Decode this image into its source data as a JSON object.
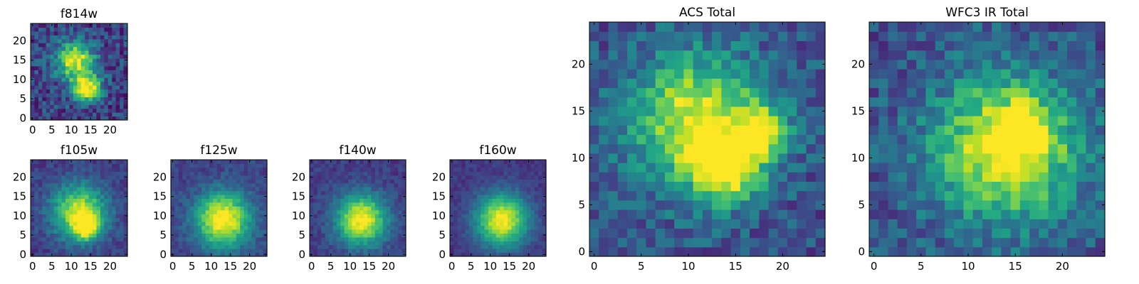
{
  "figure": {
    "panels": [
      {
        "id": "f814w",
        "title": "f814w"
      },
      {
        "id": "f105w",
        "title": "f105w"
      },
      {
        "id": "f125w",
        "title": "f125w"
      },
      {
        "id": "f140w",
        "title": "f140w"
      },
      {
        "id": "f160w",
        "title": "f160w"
      },
      {
        "id": "acs-total",
        "title": "ACS Total"
      },
      {
        "id": "wfc3-ir-total",
        "title": "WFC3 IR Total"
      }
    ]
  },
  "chart_data": [
    {
      "type": "heatmap",
      "title": "f814w",
      "colormap": "viridis",
      "xlim": [
        0,
        25
      ],
      "ylim": [
        0,
        25
      ],
      "grid": false,
      "xticks": [
        0,
        5,
        10,
        15,
        20
      ],
      "yticks": [
        0,
        5,
        10,
        15,
        20
      ],
      "pixels": 25,
      "peak_components": [
        {
          "x": 11,
          "y": 15,
          "amp": 0.75,
          "sigma": 3.5
        },
        {
          "x": 14,
          "y": 8,
          "amp": 0.85,
          "sigma": 2.5
        }
      ],
      "background": 0.2,
      "noise": 0.35
    },
    {
      "type": "heatmap",
      "title": "f105w",
      "colormap": "viridis",
      "xlim": [
        0,
        25
      ],
      "ylim": [
        0,
        25
      ],
      "grid": false,
      "xticks": [
        0,
        5,
        10,
        15,
        20
      ],
      "yticks": [
        0,
        5,
        10,
        15,
        20
      ],
      "pixels": 25,
      "peak_components": [
        {
          "x": 12,
          "y": 11,
          "amp": 0.75,
          "sigma": 5
        },
        {
          "x": 14,
          "y": 7,
          "amp": 0.6,
          "sigma": 2.2
        }
      ],
      "background": 0.18,
      "noise": 0.18
    },
    {
      "type": "heatmap",
      "title": "f125w",
      "colormap": "viridis",
      "xlim": [
        0,
        25
      ],
      "ylim": [
        0,
        25
      ],
      "grid": false,
      "xticks": [
        0,
        5,
        10,
        15,
        20
      ],
      "yticks": [
        0,
        5,
        10,
        15,
        20
      ],
      "pixels": 25,
      "peak_components": [
        {
          "x": 13,
          "y": 9,
          "amp": 0.85,
          "sigma": 5
        }
      ],
      "background": 0.2,
      "noise": 0.16
    },
    {
      "type": "heatmap",
      "title": "f140w",
      "colormap": "viridis",
      "xlim": [
        0,
        25
      ],
      "ylim": [
        0,
        25
      ],
      "grid": false,
      "xticks": [
        0,
        5,
        10,
        15,
        20
      ],
      "yticks": [
        0,
        5,
        10,
        15,
        20
      ],
      "pixels": 25,
      "peak_components": [
        {
          "x": 13,
          "y": 9,
          "amp": 0.85,
          "sigma": 4.6
        }
      ],
      "background": 0.18,
      "noise": 0.15
    },
    {
      "type": "heatmap",
      "title": "f160w",
      "colormap": "viridis",
      "xlim": [
        0,
        25
      ],
      "ylim": [
        0,
        25
      ],
      "grid": false,
      "xticks": [
        0,
        5,
        10,
        15,
        20
      ],
      "yticks": [
        0,
        5,
        10,
        15,
        20
      ],
      "pixels": 25,
      "peak_components": [
        {
          "x": 13,
          "y": 9,
          "amp": 0.85,
          "sigma": 4.8
        }
      ],
      "background": 0.16,
      "noise": 0.12
    },
    {
      "type": "heatmap",
      "title": "ACS Total",
      "colormap": "viridis",
      "xlim": [
        0,
        25
      ],
      "ylim": [
        0,
        25
      ],
      "grid": false,
      "xticks": [
        0,
        5,
        10,
        15,
        20
      ],
      "yticks": [
        0,
        5,
        10,
        15,
        20
      ],
      "pixels": 25,
      "peak_components": [
        {
          "x": 11,
          "y": 14,
          "amp": 0.7,
          "sigma": 5
        },
        {
          "x": 14,
          "y": 9,
          "amp": 0.7,
          "sigma": 2.5
        },
        {
          "x": 18,
          "y": 13,
          "amp": 0.5,
          "sigma": 2
        }
      ],
      "background": 0.25,
      "noise": 0.3
    },
    {
      "type": "heatmap",
      "title": "WFC3 IR Total",
      "colormap": "viridis",
      "xlim": [
        0,
        25
      ],
      "ylim": [
        0,
        25
      ],
      "grid": false,
      "xticks": [
        0,
        5,
        10,
        15,
        20
      ],
      "yticks": [
        0,
        5,
        10,
        15,
        20
      ],
      "pixels": 25,
      "peak_components": [
        {
          "x": 14,
          "y": 11,
          "amp": 0.75,
          "sigma": 5.5
        },
        {
          "x": 16,
          "y": 13,
          "amp": 0.35,
          "sigma": 2
        }
      ],
      "background": 0.25,
      "noise": 0.3
    }
  ]
}
